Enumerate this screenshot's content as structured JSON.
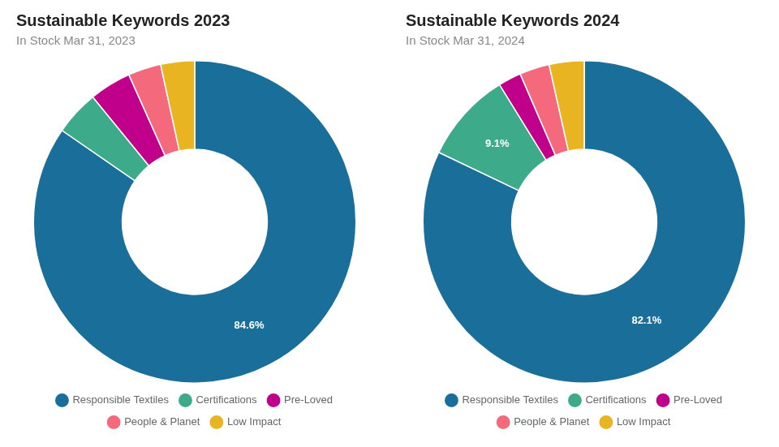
{
  "chart_data": [
    {
      "type": "doughnut",
      "title": "Sustainable Keywords 2023",
      "subtitle": "In Stock Mar 31, 2023",
      "categories": [
        "Responsible Textiles",
        "Certifications",
        "Pre-Loved",
        "People & Planet",
        "Low Impact"
      ],
      "values": [
        84.6,
        4.5,
        4.2,
        3.3,
        3.4
      ],
      "value_labels": [
        "84.6%",
        null,
        null,
        null,
        null
      ],
      "data_labels": true,
      "colors": [
        "#1a6f9a",
        "#3daa8a",
        "#c0008a",
        "#f5697c",
        "#e8b422"
      ],
      "legend": "bottom"
    },
    {
      "type": "doughnut",
      "title": "Sustainable Keywords 2024",
      "subtitle": "In Stock Mar 31, 2024",
      "categories": [
        "Responsible Textiles",
        "Certifications",
        "Pre-Loved",
        "People & Planet",
        "Low Impact"
      ],
      "values": [
        82.1,
        9.1,
        2.3,
        3.0,
        3.5
      ],
      "value_labels": [
        "82.1%",
        "9.1%",
        null,
        null,
        null
      ],
      "data_labels": true,
      "colors": [
        "#1a6f9a",
        "#3daa8a",
        "#c0008a",
        "#f5697c",
        "#e8b422"
      ],
      "legend": "bottom"
    }
  ]
}
